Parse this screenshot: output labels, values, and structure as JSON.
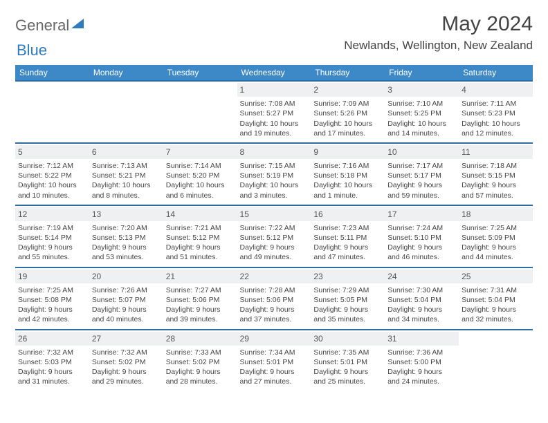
{
  "brand": {
    "part1": "General",
    "part2": "Blue"
  },
  "title": "May 2024",
  "location": "Newlands, Wellington, New Zealand",
  "colors": {
    "header_bg": "#3d88c7",
    "row_border": "#2e6da4",
    "daynum_bg": "#eef0f1",
    "brand_blue": "#2e7cc0"
  },
  "weekdays": [
    "Sunday",
    "Monday",
    "Tuesday",
    "Wednesday",
    "Thursday",
    "Friday",
    "Saturday"
  ],
  "weeks": [
    [
      null,
      null,
      null,
      {
        "d": "1",
        "sunrise": "Sunrise: 7:08 AM",
        "sunset": "Sunset: 5:27 PM",
        "daylight1": "Daylight: 10 hours",
        "daylight2": "and 19 minutes."
      },
      {
        "d": "2",
        "sunrise": "Sunrise: 7:09 AM",
        "sunset": "Sunset: 5:26 PM",
        "daylight1": "Daylight: 10 hours",
        "daylight2": "and 17 minutes."
      },
      {
        "d": "3",
        "sunrise": "Sunrise: 7:10 AM",
        "sunset": "Sunset: 5:25 PM",
        "daylight1": "Daylight: 10 hours",
        "daylight2": "and 14 minutes."
      },
      {
        "d": "4",
        "sunrise": "Sunrise: 7:11 AM",
        "sunset": "Sunset: 5:23 PM",
        "daylight1": "Daylight: 10 hours",
        "daylight2": "and 12 minutes."
      }
    ],
    [
      {
        "d": "5",
        "sunrise": "Sunrise: 7:12 AM",
        "sunset": "Sunset: 5:22 PM",
        "daylight1": "Daylight: 10 hours",
        "daylight2": "and 10 minutes."
      },
      {
        "d": "6",
        "sunrise": "Sunrise: 7:13 AM",
        "sunset": "Sunset: 5:21 PM",
        "daylight1": "Daylight: 10 hours",
        "daylight2": "and 8 minutes."
      },
      {
        "d": "7",
        "sunrise": "Sunrise: 7:14 AM",
        "sunset": "Sunset: 5:20 PM",
        "daylight1": "Daylight: 10 hours",
        "daylight2": "and 6 minutes."
      },
      {
        "d": "8",
        "sunrise": "Sunrise: 7:15 AM",
        "sunset": "Sunset: 5:19 PM",
        "daylight1": "Daylight: 10 hours",
        "daylight2": "and 3 minutes."
      },
      {
        "d": "9",
        "sunrise": "Sunrise: 7:16 AM",
        "sunset": "Sunset: 5:18 PM",
        "daylight1": "Daylight: 10 hours",
        "daylight2": "and 1 minute."
      },
      {
        "d": "10",
        "sunrise": "Sunrise: 7:17 AM",
        "sunset": "Sunset: 5:17 PM",
        "daylight1": "Daylight: 9 hours",
        "daylight2": "and 59 minutes."
      },
      {
        "d": "11",
        "sunrise": "Sunrise: 7:18 AM",
        "sunset": "Sunset: 5:15 PM",
        "daylight1": "Daylight: 9 hours",
        "daylight2": "and 57 minutes."
      }
    ],
    [
      {
        "d": "12",
        "sunrise": "Sunrise: 7:19 AM",
        "sunset": "Sunset: 5:14 PM",
        "daylight1": "Daylight: 9 hours",
        "daylight2": "and 55 minutes."
      },
      {
        "d": "13",
        "sunrise": "Sunrise: 7:20 AM",
        "sunset": "Sunset: 5:13 PM",
        "daylight1": "Daylight: 9 hours",
        "daylight2": "and 53 minutes."
      },
      {
        "d": "14",
        "sunrise": "Sunrise: 7:21 AM",
        "sunset": "Sunset: 5:12 PM",
        "daylight1": "Daylight: 9 hours",
        "daylight2": "and 51 minutes."
      },
      {
        "d": "15",
        "sunrise": "Sunrise: 7:22 AM",
        "sunset": "Sunset: 5:12 PM",
        "daylight1": "Daylight: 9 hours",
        "daylight2": "and 49 minutes."
      },
      {
        "d": "16",
        "sunrise": "Sunrise: 7:23 AM",
        "sunset": "Sunset: 5:11 PM",
        "daylight1": "Daylight: 9 hours",
        "daylight2": "and 47 minutes."
      },
      {
        "d": "17",
        "sunrise": "Sunrise: 7:24 AM",
        "sunset": "Sunset: 5:10 PM",
        "daylight1": "Daylight: 9 hours",
        "daylight2": "and 46 minutes."
      },
      {
        "d": "18",
        "sunrise": "Sunrise: 7:25 AM",
        "sunset": "Sunset: 5:09 PM",
        "daylight1": "Daylight: 9 hours",
        "daylight2": "and 44 minutes."
      }
    ],
    [
      {
        "d": "19",
        "sunrise": "Sunrise: 7:25 AM",
        "sunset": "Sunset: 5:08 PM",
        "daylight1": "Daylight: 9 hours",
        "daylight2": "and 42 minutes."
      },
      {
        "d": "20",
        "sunrise": "Sunrise: 7:26 AM",
        "sunset": "Sunset: 5:07 PM",
        "daylight1": "Daylight: 9 hours",
        "daylight2": "and 40 minutes."
      },
      {
        "d": "21",
        "sunrise": "Sunrise: 7:27 AM",
        "sunset": "Sunset: 5:06 PM",
        "daylight1": "Daylight: 9 hours",
        "daylight2": "and 39 minutes."
      },
      {
        "d": "22",
        "sunrise": "Sunrise: 7:28 AM",
        "sunset": "Sunset: 5:06 PM",
        "daylight1": "Daylight: 9 hours",
        "daylight2": "and 37 minutes."
      },
      {
        "d": "23",
        "sunrise": "Sunrise: 7:29 AM",
        "sunset": "Sunset: 5:05 PM",
        "daylight1": "Daylight: 9 hours",
        "daylight2": "and 35 minutes."
      },
      {
        "d": "24",
        "sunrise": "Sunrise: 7:30 AM",
        "sunset": "Sunset: 5:04 PM",
        "daylight1": "Daylight: 9 hours",
        "daylight2": "and 34 minutes."
      },
      {
        "d": "25",
        "sunrise": "Sunrise: 7:31 AM",
        "sunset": "Sunset: 5:04 PM",
        "daylight1": "Daylight: 9 hours",
        "daylight2": "and 32 minutes."
      }
    ],
    [
      {
        "d": "26",
        "sunrise": "Sunrise: 7:32 AM",
        "sunset": "Sunset: 5:03 PM",
        "daylight1": "Daylight: 9 hours",
        "daylight2": "and 31 minutes."
      },
      {
        "d": "27",
        "sunrise": "Sunrise: 7:32 AM",
        "sunset": "Sunset: 5:02 PM",
        "daylight1": "Daylight: 9 hours",
        "daylight2": "and 29 minutes."
      },
      {
        "d": "28",
        "sunrise": "Sunrise: 7:33 AM",
        "sunset": "Sunset: 5:02 PM",
        "daylight1": "Daylight: 9 hours",
        "daylight2": "and 28 minutes."
      },
      {
        "d": "29",
        "sunrise": "Sunrise: 7:34 AM",
        "sunset": "Sunset: 5:01 PM",
        "daylight1": "Daylight: 9 hours",
        "daylight2": "and 27 minutes."
      },
      {
        "d": "30",
        "sunrise": "Sunrise: 7:35 AM",
        "sunset": "Sunset: 5:01 PM",
        "daylight1": "Daylight: 9 hours",
        "daylight2": "and 25 minutes."
      },
      {
        "d": "31",
        "sunrise": "Sunrise: 7:36 AM",
        "sunset": "Sunset: 5:00 PM",
        "daylight1": "Daylight: 9 hours",
        "daylight2": "and 24 minutes."
      },
      null
    ]
  ]
}
